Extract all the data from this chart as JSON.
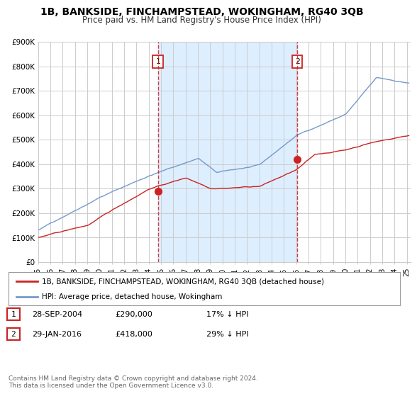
{
  "title": "1B, BANKSIDE, FINCHAMPSTEAD, WOKINGHAM, RG40 3QB",
  "subtitle": "Price paid vs. HM Land Registry's House Price Index (HPI)",
  "title_fontsize": 10,
  "subtitle_fontsize": 8.5,
  "background_color": "#ffffff",
  "plot_bg_color": "#ffffff",
  "grid_color": "#cccccc",
  "shade_color": "#ddeeff",
  "ylim": [
    0,
    900000
  ],
  "yticks": [
    0,
    100000,
    200000,
    300000,
    400000,
    500000,
    600000,
    700000,
    800000,
    900000
  ],
  "ytick_labels": [
    "£0",
    "£100K",
    "£200K",
    "£300K",
    "£400K",
    "£500K",
    "£600K",
    "£700K",
    "£800K",
    "£900K"
  ],
  "hpi_color": "#7799cc",
  "price_color": "#cc2222",
  "marker1_x": 2004.75,
  "marker2_x": 2016.08,
  "marker1_price": 290000,
  "marker2_price": 418000,
  "legend_label_red": "1B, BANKSIDE, FINCHAMPSTEAD, WOKINGHAM, RG40 3QB (detached house)",
  "legend_label_blue": "HPI: Average price, detached house, Wokingham",
  "annotation1_date": "28-SEP-2004",
  "annotation1_price": "£290,000",
  "annotation1_pct": "17% ↓ HPI",
  "annotation2_date": "29-JAN-2016",
  "annotation2_price": "£418,000",
  "annotation2_pct": "29% ↓ HPI",
  "footer": "Contains HM Land Registry data © Crown copyright and database right 2024.\nThis data is licensed under the Open Government Licence v3.0.",
  "xlim_min": 1995.0,
  "xlim_max": 2025.3,
  "xtick_years": [
    1995,
    1996,
    1997,
    1998,
    1999,
    2000,
    2001,
    2002,
    2003,
    2004,
    2005,
    2006,
    2007,
    2008,
    2009,
    2010,
    2011,
    2012,
    2013,
    2014,
    2015,
    2016,
    2017,
    2018,
    2019,
    2020,
    2021,
    2022,
    2023,
    2024,
    2025
  ]
}
